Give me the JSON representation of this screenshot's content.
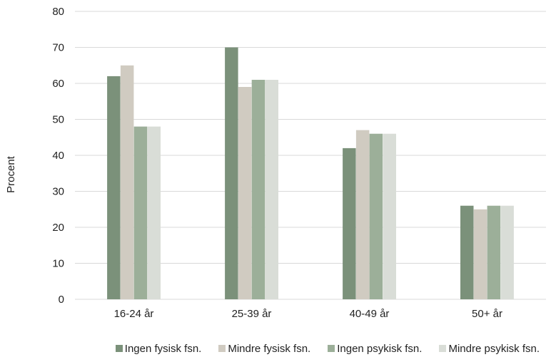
{
  "chart_data": {
    "type": "bar",
    "categories": [
      "16-24 år",
      "25-39 år",
      "40-49 år",
      "50+ år"
    ],
    "series": [
      {
        "name": "Ingen fysisk fsn.",
        "color": "#7b917a",
        "values": [
          62,
          70,
          42,
          26
        ]
      },
      {
        "name": "Mindre fysisk fsn.",
        "color": "#d0cbc1",
        "values": [
          65,
          59,
          47,
          25
        ]
      },
      {
        "name": "Ingen psykisk fsn.",
        "color": "#9caf99",
        "values": [
          48,
          61,
          46,
          26
        ]
      },
      {
        "name": "Mindre psykisk fsn.",
        "color": "#d9ddd7",
        "values": [
          48,
          61,
          46,
          26
        ]
      }
    ],
    "ylabel": "Procent",
    "xlabel": "",
    "ylim": [
      0,
      80
    ],
    "yticks": [
      0,
      10,
      20,
      30,
      40,
      50,
      60,
      70,
      80
    ],
    "grid": true,
    "legend_position": "bottom"
  }
}
